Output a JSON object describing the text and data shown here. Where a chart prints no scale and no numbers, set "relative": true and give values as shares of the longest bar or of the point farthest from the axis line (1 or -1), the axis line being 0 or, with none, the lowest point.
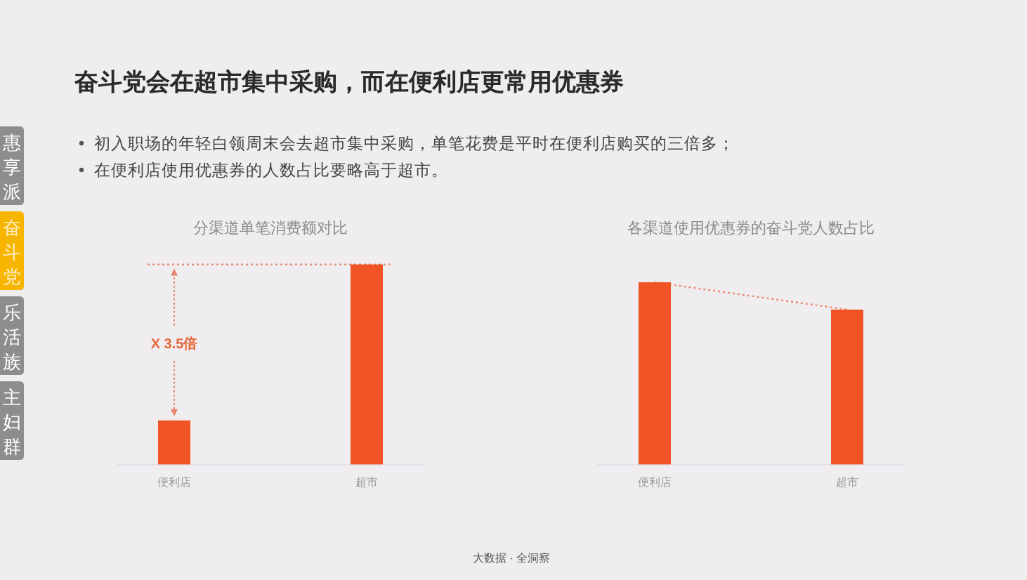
{
  "chart_data": [
    {
      "type": "other",
      "title": "奋斗党会在超市集中采购，而在便利店更常用优惠券",
      "annotations": [
        "初入职场的年轻白领周末会去超市集中采购，单笔花费是平时在便利店购买的三倍多；",
        "在便利店使用优惠券的人数占比要略高于超市。",
        "惠享派",
        "奋斗党",
        "乐活族",
        "主妇群",
        "大数据 · 全洞察"
      ]
    },
    {
      "type": "bar",
      "title": "分渠道单笔消费额对比",
      "categories": [
        "便利店",
        "超市"
      ],
      "values": [
        0.22,
        1
      ],
      "color": "#f05324",
      "relative": true,
      "ref_lines": [
        {
          "axis": "y",
          "value": 1,
          "color": "#e8866a",
          "line_style": "dotted"
        }
      ],
      "annotations": [
        "X 3.5倍"
      ]
    },
    {
      "type": "bar",
      "title": "各渠道使用优惠券的奋斗党人数占比",
      "categories": [
        "便利店",
        "超市"
      ],
      "relative": true,
      "series": [
        {
          "color": "#f05324",
          "values": [
            1,
            0.85
          ]
        },
        {
          "type": "line",
          "color": "#ec8a70",
          "line_style": "dotted",
          "values": [
            1,
            0.85
          ]
        }
      ]
    }
  ]
}
